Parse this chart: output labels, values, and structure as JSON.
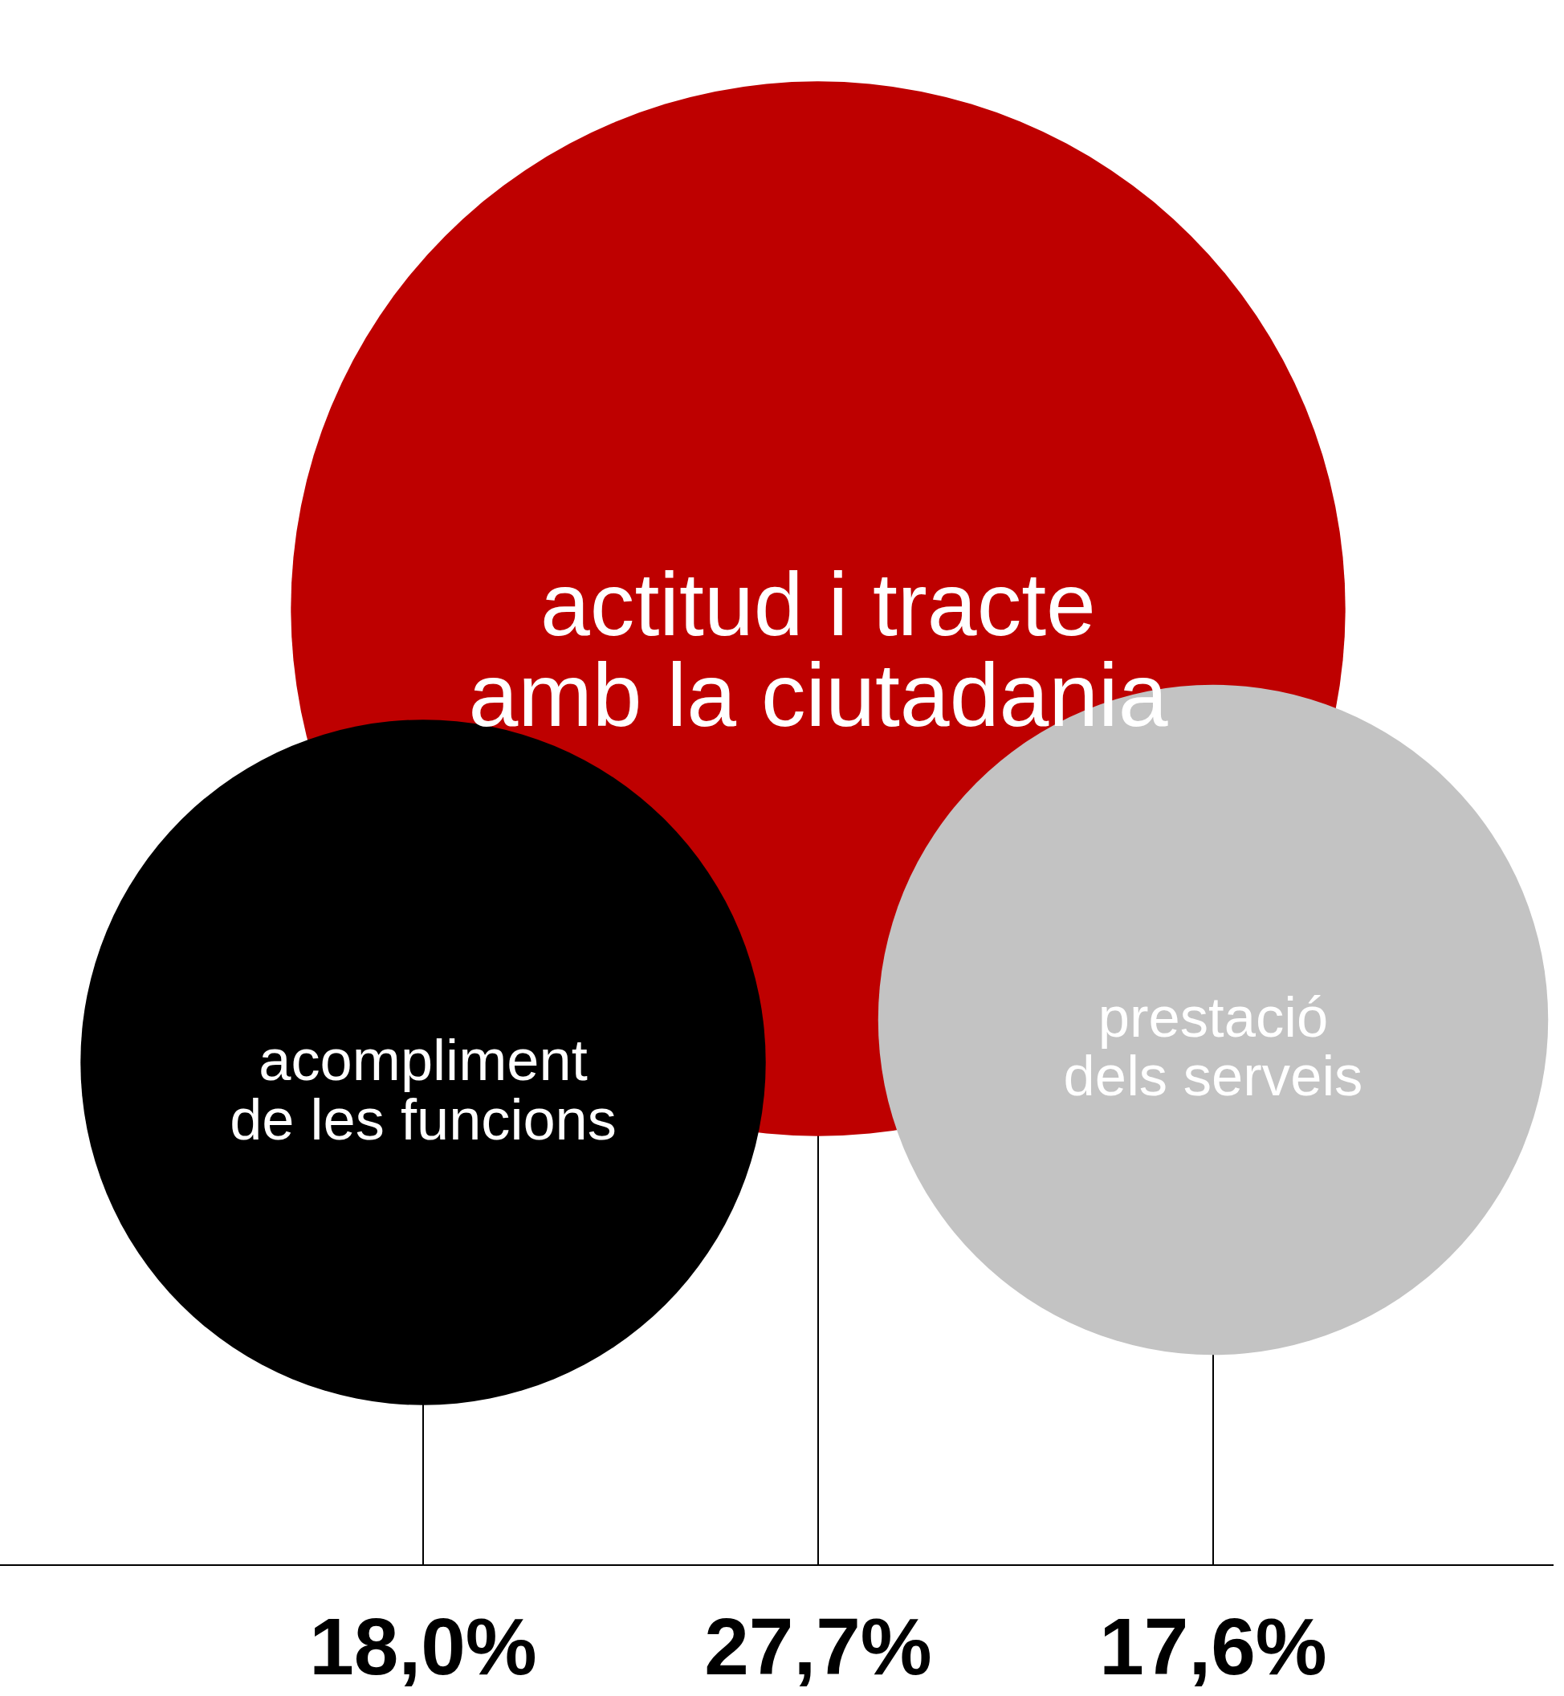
{
  "chart_data": {
    "type": "other",
    "categories": [
      "acompliment\nde les funcions",
      "actitud i tracte\namb la ciutadania",
      "prestació\ndels serveis"
    ],
    "values": [
      18.0,
      27.7,
      17.6
    ],
    "colors": [
      "#000000",
      "#be0000",
      "#c3c3c3"
    ],
    "value_labels": [
      "18,0%",
      "27,7%",
      "17,6%"
    ]
  }
}
